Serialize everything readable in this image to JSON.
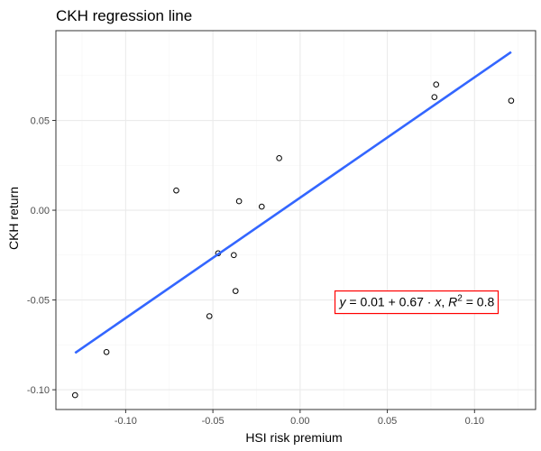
{
  "chart_data": {
    "type": "scatter",
    "title": "CKH regression line",
    "xlabel": "HSI risk premium",
    "ylabel": "CKH return",
    "xlim": [
      -0.14,
      0.135
    ],
    "ylim": [
      -0.111,
      0.1
    ],
    "x_ticks": [
      -0.1,
      -0.05,
      0.0,
      0.05,
      0.1
    ],
    "x_tick_labels": [
      "-0.10",
      "-0.05",
      "0.00",
      "0.05",
      "0.10"
    ],
    "y_ticks": [
      -0.1,
      -0.05,
      0.0,
      0.05
    ],
    "y_tick_labels": [
      "-0.10",
      "-0.05",
      "0.00",
      "0.05"
    ],
    "grid": true,
    "points": [
      {
        "x": -0.129,
        "y": -0.103
      },
      {
        "x": -0.111,
        "y": -0.079
      },
      {
        "x": -0.071,
        "y": 0.011
      },
      {
        "x": -0.052,
        "y": -0.059
      },
      {
        "x": -0.047,
        "y": -0.024
      },
      {
        "x": -0.038,
        "y": -0.025
      },
      {
        "x": -0.037,
        "y": -0.045
      },
      {
        "x": -0.035,
        "y": 0.005
      },
      {
        "x": -0.022,
        "y": 0.002
      },
      {
        "x": -0.012,
        "y": 0.029
      },
      {
        "x": 0.077,
        "y": 0.063
      },
      {
        "x": 0.078,
        "y": 0.07
      },
      {
        "x": 0.121,
        "y": 0.061
      }
    ],
    "regression_line": {
      "x": [
        -0.129,
        0.121
      ],
      "y": [
        -0.0795,
        0.0881
      ],
      "color": "#3366ff"
    },
    "annotation": {
      "y_label": "y",
      "equals": " = 0.01 + 0.67 · ",
      "x_label": "x",
      "sep": ",  ",
      "r_label": "R",
      "r_exp": "2",
      "r_value": " = 0.8",
      "x": 0.02,
      "y": -0.051,
      "box_color": "#ff0000"
    },
    "colors": {
      "panel_border": "#333333",
      "grid_major": "#ebebeb",
      "grid_minor": "#f5f5f5",
      "point_stroke": "#000000"
    }
  }
}
